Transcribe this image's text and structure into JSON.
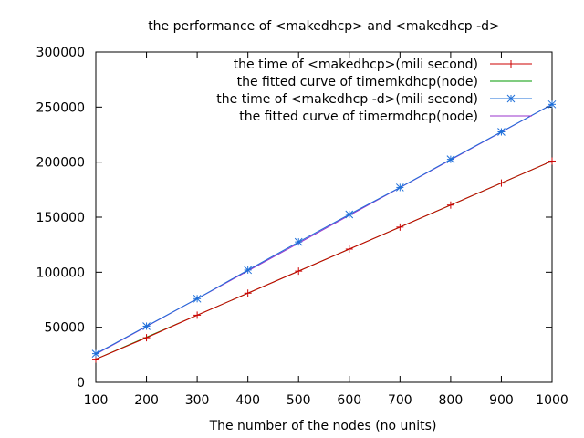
{
  "chart_data": {
    "type": "line",
    "title": "the performance of <makedhcp> and <makedhcp -d>",
    "xlabel": "The number of the nodes (no units)",
    "ylabel": "",
    "xlim": [
      100,
      1000
    ],
    "ylim": [
      0,
      300000
    ],
    "x_ticks": [
      100,
      200,
      300,
      400,
      500,
      600,
      700,
      800,
      900,
      1000
    ],
    "y_ticks": [
      0,
      50000,
      100000,
      150000,
      200000,
      250000,
      300000
    ],
    "grid": false,
    "legend_position": "top-right",
    "series": [
      {
        "name": "the time of <makedhcp>(mili second)",
        "kind": "points",
        "marker": "plus",
        "color": "#cc0000",
        "x": [
          100,
          200,
          300,
          400,
          500,
          600,
          700,
          800,
          900,
          1000
        ],
        "y": [
          21000,
          40500,
          61000,
          81000,
          101000,
          121000,
          141000,
          161000,
          181000,
          201000
        ]
      },
      {
        "name": "the fitted curve of  timemkdhcp(node)",
        "kind": "line",
        "color": "#009900",
        "x": [
          100,
          1000
        ],
        "y": [
          21000,
          201000
        ]
      },
      {
        "name": "the time of <makedhcp -d>(mili second)",
        "kind": "points",
        "marker": "star",
        "color": "#1e6fd9",
        "x": [
          100,
          200,
          300,
          400,
          500,
          600,
          700,
          800,
          900,
          1000
        ],
        "y": [
          26000,
          51000,
          76000,
          102000,
          127500,
          152500,
          177000,
          202500,
          227500,
          252500
        ]
      },
      {
        "name": "the fitted curve of  timermdhcp(node)",
        "kind": "line",
        "color": "#9933cc",
        "x": [
          100,
          1000
        ],
        "y": [
          25500,
          252500
        ]
      }
    ]
  }
}
